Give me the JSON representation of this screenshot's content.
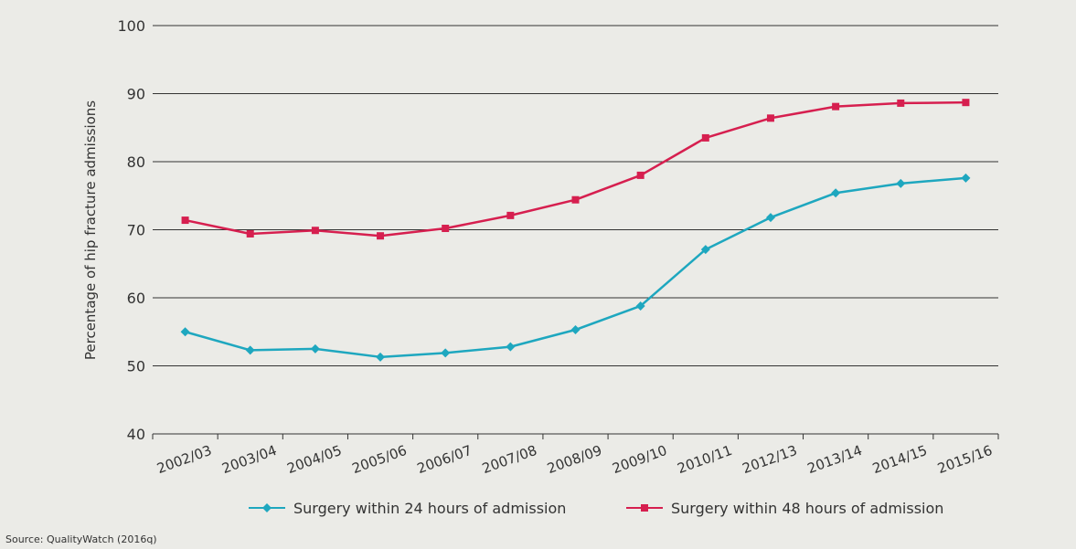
{
  "chart_data": {
    "type": "line",
    "y_label": "Percentage of hip fracture admissions",
    "categories": [
      "2002/03",
      "2003/04",
      "2004/05",
      "2005/06",
      "2006/07",
      "2007/08",
      "2008/09",
      "2009/10",
      "2010/11",
      "2012/13",
      "2013/14",
      "2014/15",
      "2015/16"
    ],
    "series": [
      {
        "name": "Surgery within 24 hours of admission",
        "color": "#1ea7bf",
        "marker": "diamond",
        "values": [
          55.0,
          52.3,
          52.5,
          51.3,
          51.9,
          52.8,
          55.3,
          58.8,
          67.1,
          71.8,
          75.4,
          76.8,
          77.6
        ]
      },
      {
        "name": "Surgery within 48 hours of admission",
        "color": "#d61f4f",
        "marker": "square",
        "values": [
          71.4,
          69.4,
          69.9,
          69.1,
          70.2,
          72.1,
          74.4,
          78.0,
          83.5,
          86.4,
          88.1,
          88.6,
          88.7
        ]
      }
    ],
    "ylim": [
      40,
      100
    ],
    "yticks": [
      40,
      50,
      60,
      70,
      80,
      90,
      100
    ],
    "grid": true,
    "legend": "bottom",
    "source": "Source: QualityWatch (2016q)"
  }
}
